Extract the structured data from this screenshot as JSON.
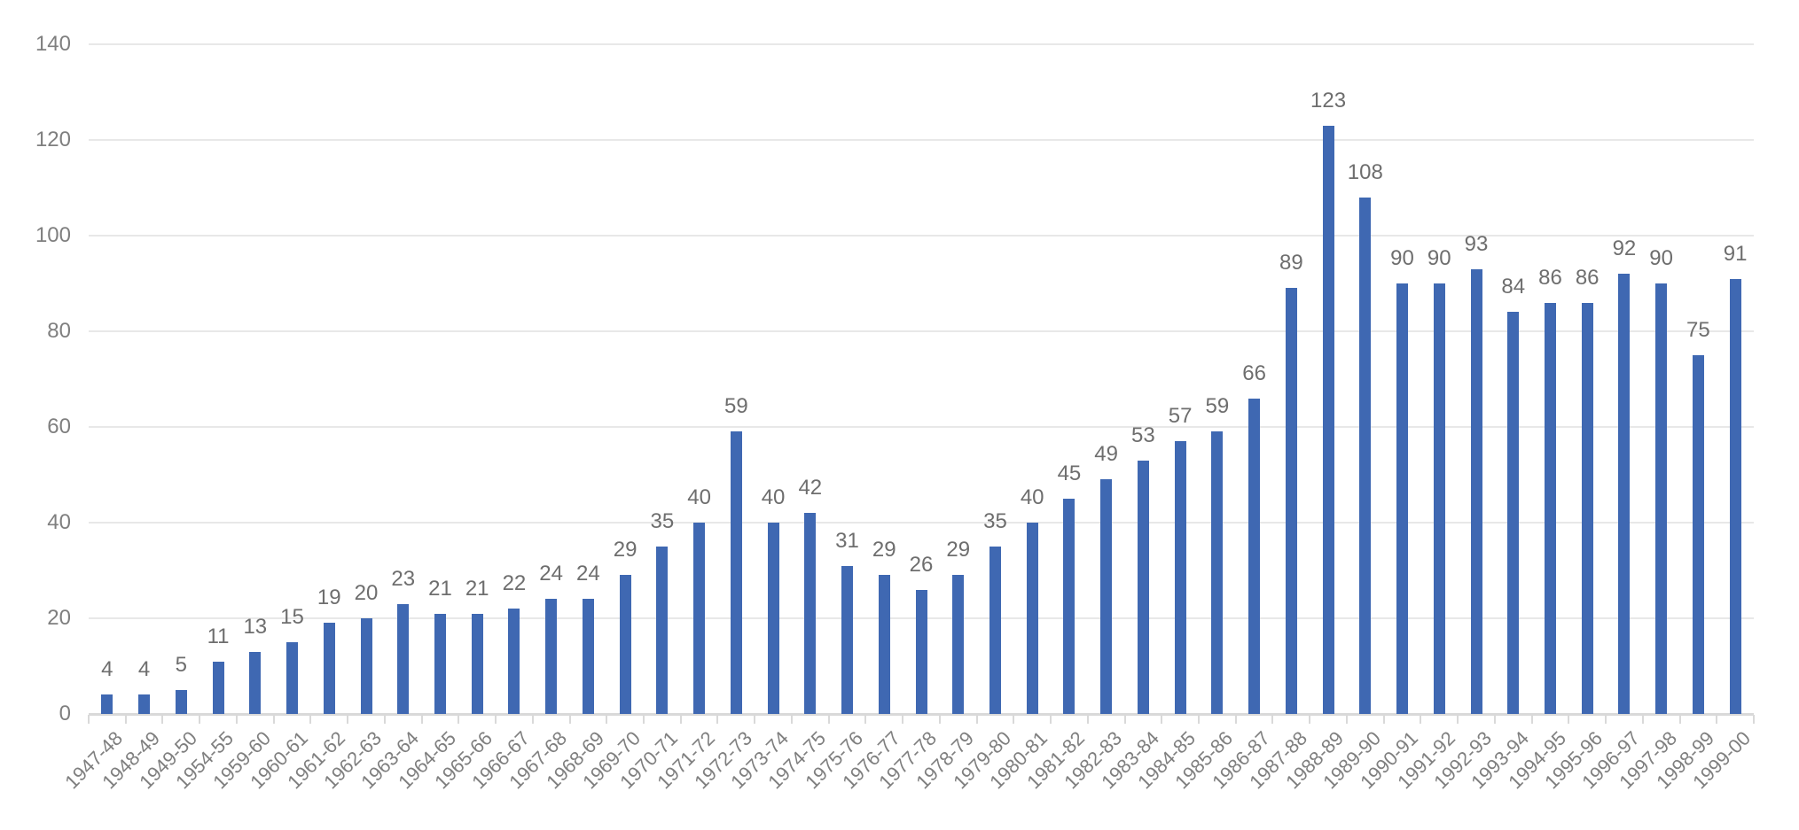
{
  "chart_data": {
    "type": "bar",
    "title": "",
    "xlabel": "",
    "ylabel": "",
    "ylim": [
      0,
      140
    ],
    "yticks": [
      0,
      20,
      40,
      60,
      80,
      100,
      120,
      140
    ],
    "grid": true,
    "legend": null,
    "bar_color": "#3f68b2",
    "data_labels": true,
    "categories": [
      "1947-48",
      "1948-49",
      "1949-50",
      "1954-55",
      "1959-60",
      "1960-61",
      "1961-62",
      "1962-63",
      "1963-64",
      "1964-65",
      "1965-66",
      "1966-67",
      "1967-68",
      "1968-69",
      "1969-70",
      "1970-71",
      "1971-72",
      "1972-73",
      "1973-74",
      "1974-75",
      "1975-76",
      "1976-77",
      "1977-78",
      "1978-79",
      "1979-80",
      "1980-81",
      "1981-82",
      "1982-83",
      "1983-84",
      "1984-85",
      "1985-86",
      "1986-87",
      "1987-88",
      "1988-89",
      "1989-90",
      "1990-91",
      "1991-92",
      "1992-93",
      "1993-94",
      "1994-95",
      "1995-96",
      "1996-97",
      "1997-98",
      "1998-99",
      "1999-00"
    ],
    "values": [
      4,
      4,
      5,
      11,
      13,
      15,
      19,
      20,
      23,
      21,
      21,
      22,
      24,
      24,
      29,
      35,
      40,
      59,
      40,
      42,
      31,
      29,
      26,
      29,
      35,
      40,
      45,
      49,
      53,
      57,
      59,
      66,
      89,
      123,
      108,
      90,
      90,
      93,
      84,
      86,
      86,
      92,
      90,
      75,
      91
    ]
  }
}
